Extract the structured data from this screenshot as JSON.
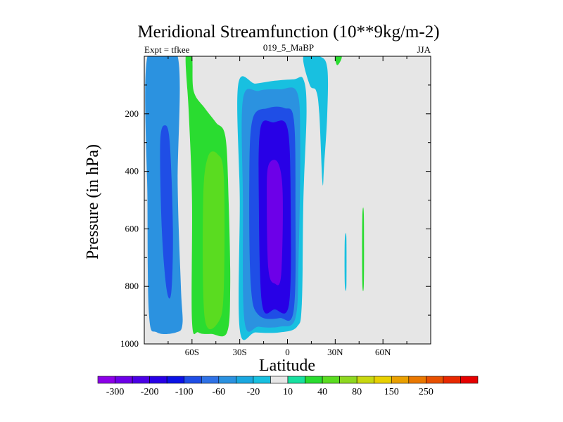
{
  "chart_data": {
    "type": "heatmap",
    "title": "Meridional Streamfunction (10**9kg/m-2)",
    "subtitle_left": "Expt = tfkee",
    "subtitle_center": "019_5_MaBP",
    "subtitle_right": "JJA",
    "xlabel": "Latitude",
    "ylabel": "Pressure (in hPa)",
    "xlim": [
      -90,
      90
    ],
    "ylim": [
      1000,
      0
    ],
    "y_reversed": true,
    "x_ticks": [
      {
        "value": -60,
        "label": "60S"
      },
      {
        "value": -30,
        "label": "30S"
      },
      {
        "value": 0,
        "label": "0"
      },
      {
        "value": 30,
        "label": "30N"
      },
      {
        "value": 60,
        "label": "60N"
      }
    ],
    "y_ticks": [
      {
        "value": 200,
        "label": "200"
      },
      {
        "value": 400,
        "label": "400"
      },
      {
        "value": 600,
        "label": "600"
      },
      {
        "value": 800,
        "label": "800"
      },
      {
        "value": 1000,
        "label": "1000"
      }
    ],
    "background_color": "#e6e6e6",
    "colorbar": {
      "colors": [
        "#8c00e8",
        "#6d00e8",
        "#4b00e6",
        "#2800e6",
        "#0b12e6",
        "#1f4ee6",
        "#2f72e6",
        "#2b92e0",
        "#1aa8e0",
        "#18c0e0",
        "#e6e6e6",
        "#18e0a0",
        "#2adc30",
        "#5adc20",
        "#8ed820",
        "#c8d810",
        "#e8d000",
        "#eaa000",
        "#ea7800",
        "#e85000",
        "#e82800",
        "#e60000"
      ],
      "labels": [
        "-300",
        "-200",
        "-100",
        "-60",
        "-20",
        "10",
        "40",
        "80",
        "150",
        "250"
      ]
    },
    "contour_regions": [
      {
        "name": "southern-polar-cell",
        "sign": "negative",
        "level_min": -60,
        "level_max": -20,
        "outline": [
          [
            -88,
            0
          ],
          [
            -69,
            0
          ],
          [
            -69,
            450
          ],
          [
            -67,
            800
          ],
          [
            -66,
            930
          ],
          [
            -70,
            960
          ],
          [
            -82,
            960
          ],
          [
            -87,
            900
          ],
          [
            -88,
            500
          ]
        ]
      },
      {
        "name": "southern-polar-cell-core",
        "sign": "negative",
        "level_min": -100,
        "level_max": -60,
        "outline": [
          [
            -80,
            300
          ],
          [
            -77,
            240
          ],
          [
            -74,
            300
          ],
          [
            -72,
            600
          ],
          [
            -73,
            820
          ],
          [
            -76,
            810
          ],
          [
            -79,
            600
          ]
        ]
      },
      {
        "name": "southern-ferrel-cell",
        "sign": "positive",
        "level_min": 10,
        "level_max": 40,
        "outline": [
          [
            -64,
            0
          ],
          [
            -60,
            0
          ],
          [
            -59,
            120
          ],
          [
            -52,
            180
          ],
          [
            -45,
            230
          ],
          [
            -39,
            280
          ],
          [
            -37,
            500
          ],
          [
            -36,
            800
          ],
          [
            -38,
            960
          ],
          [
            -48,
            965
          ],
          [
            -56,
            960
          ],
          [
            -60,
            920
          ],
          [
            -60,
            500
          ],
          [
            -62,
            200
          ]
        ]
      },
      {
        "name": "southern-ferrel-cell-core",
        "sign": "positive",
        "level_min": 40,
        "level_max": 80,
        "outline": [
          [
            -50,
            350
          ],
          [
            -44,
            340
          ],
          [
            -40,
            420
          ],
          [
            -40,
            800
          ],
          [
            -43,
            920
          ],
          [
            -52,
            910
          ],
          [
            -53,
            500
          ]
        ]
      },
      {
        "name": "hadley-cell-level-1",
        "sign": "negative",
        "level_min": -20,
        "level_max": -10,
        "outline": [
          [
            -31,
            100
          ],
          [
            -20,
            95
          ],
          [
            -8,
            85
          ],
          [
            4,
            80
          ],
          [
            10,
            80
          ],
          [
            12,
            190
          ],
          [
            10,
            500
          ],
          [
            9,
            860
          ],
          [
            6,
            940
          ],
          [
            -5,
            960
          ],
          [
            -20,
            960
          ],
          [
            -30,
            950
          ],
          [
            -30,
            500
          ]
        ]
      },
      {
        "name": "hadley-cell-level-2",
        "sign": "negative",
        "level_min": -60,
        "level_max": -20,
        "outline": [
          [
            -28,
            150
          ],
          [
            -18,
            120
          ],
          [
            -5,
            115
          ],
          [
            6,
            125
          ],
          [
            8,
            300
          ],
          [
            7,
            700
          ],
          [
            5,
            910
          ],
          [
            -5,
            940
          ],
          [
            -18,
            940
          ],
          [
            -27,
            920
          ],
          [
            -28,
            500
          ]
        ]
      },
      {
        "name": "hadley-cell-level-3",
        "sign": "negative",
        "level_min": -100,
        "level_max": -60,
        "outline": [
          [
            -22,
            220
          ],
          [
            -12,
            180
          ],
          [
            -2,
            180
          ],
          [
            4,
            220
          ],
          [
            5,
            500
          ],
          [
            4,
            880
          ],
          [
            -5,
            910
          ],
          [
            -18,
            900
          ],
          [
            -23,
            800
          ],
          [
            -24,
            450
          ]
        ]
      },
      {
        "name": "hadley-cell-level-4",
        "sign": "negative",
        "level_min": -200,
        "level_max": -100,
        "outline": [
          [
            -17,
            250
          ],
          [
            -9,
            230
          ],
          [
            0,
            250
          ],
          [
            2,
            500
          ],
          [
            1,
            860
          ],
          [
            -8,
            880
          ],
          [
            -16,
            860
          ],
          [
            -18,
            500
          ]
        ]
      },
      {
        "name": "hadley-cell-core",
        "sign": "negative",
        "level_min": -300,
        "level_max": -200,
        "outline": [
          [
            -12,
            380
          ],
          [
            -6,
            370
          ],
          [
            -3,
            480
          ],
          [
            -4,
            760
          ],
          [
            -8,
            790
          ],
          [
            -12,
            740
          ],
          [
            -13,
            500
          ]
        ]
      },
      {
        "name": "northern-tropics-cell",
        "sign": "negative",
        "level_min": -20,
        "level_max": -10,
        "outline": [
          [
            10,
            0
          ],
          [
            20,
            0
          ],
          [
            25,
            40
          ],
          [
            25,
            200
          ],
          [
            23,
            380
          ],
          [
            22,
            440
          ],
          [
            20,
            200
          ],
          [
            18,
            120
          ],
          [
            14,
            100
          ]
        ]
      },
      {
        "name": "northern-upper-positive",
        "sign": "positive",
        "level_min": 10,
        "level_max": 40,
        "outline": [
          [
            30,
            0
          ],
          [
            34,
            0
          ],
          [
            33,
            20
          ],
          [
            31,
            30
          ]
        ]
      },
      {
        "name": "northern-midlat-negative",
        "sign": "negative",
        "level_min": -20,
        "level_max": -10,
        "outline": [
          [
            36,
            640
          ],
          [
            37,
            630
          ],
          [
            37,
            800
          ],
          [
            36,
            790
          ]
        ]
      },
      {
        "name": "northern-midlat-positive",
        "sign": "positive",
        "level_min": 10,
        "level_max": 40,
        "outline": [
          [
            47,
            560
          ],
          [
            48,
            550
          ],
          [
            48,
            790
          ],
          [
            47,
            785
          ]
        ]
      }
    ]
  }
}
